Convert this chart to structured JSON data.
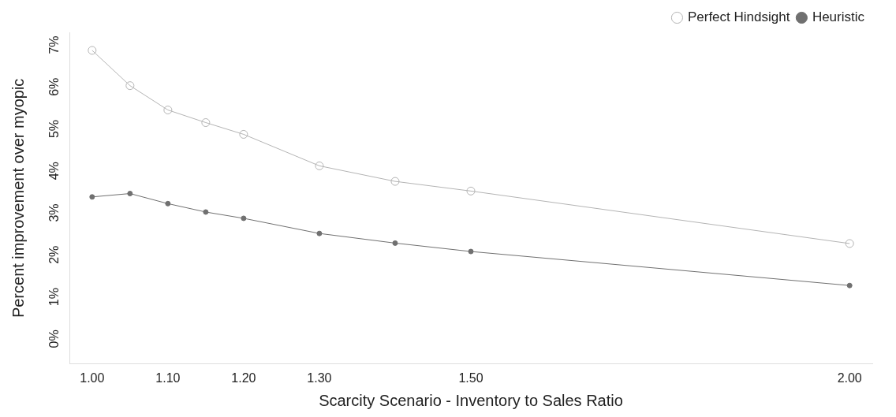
{
  "chart_data": {
    "type": "line",
    "xlabel": "Scarcity Scenario - Inventory to Sales Ratio",
    "ylabel": "Percent improvement over myopic",
    "x": [
      1.0,
      1.05,
      1.1,
      1.15,
      1.2,
      1.3,
      1.4,
      1.5,
      2.0
    ],
    "series": [
      {
        "name": "Perfect Hindsight",
        "color": "#b4b4b4",
        "values": [
          6.87,
          6.03,
          5.45,
          5.15,
          4.87,
          4.12,
          3.75,
          3.52,
          2.27
        ]
      },
      {
        "name": "Heuristic",
        "color": "#707070",
        "values": [
          3.38,
          3.46,
          3.22,
          3.02,
          2.87,
          2.51,
          2.28,
          2.08,
          1.27
        ]
      }
    ],
    "xlim": [
      0.97,
      2.03
    ],
    "xticks": [
      {
        "value": 1.0,
        "label": "1.00"
      },
      {
        "value": 1.1,
        "label": "1.10"
      },
      {
        "value": 1.2,
        "label": "1.20"
      },
      {
        "value": 1.3,
        "label": "1.30"
      },
      {
        "value": 1.5,
        "label": "1.50"
      },
      {
        "value": 2.0,
        "label": "2.00"
      }
    ],
    "ylim": [
      -0.6,
      7.3
    ],
    "yticks": [
      {
        "value": 0,
        "label": "0%"
      },
      {
        "value": 1,
        "label": "1%"
      },
      {
        "value": 2,
        "label": "2%"
      },
      {
        "value": 3,
        "label": "3%"
      },
      {
        "value": 4,
        "label": "4%"
      },
      {
        "value": 5,
        "label": "5%"
      },
      {
        "value": 6,
        "label": "6%"
      },
      {
        "value": 7,
        "label": "7%"
      }
    ],
    "grid": false,
    "legend": "top right",
    "marker": "circle"
  }
}
